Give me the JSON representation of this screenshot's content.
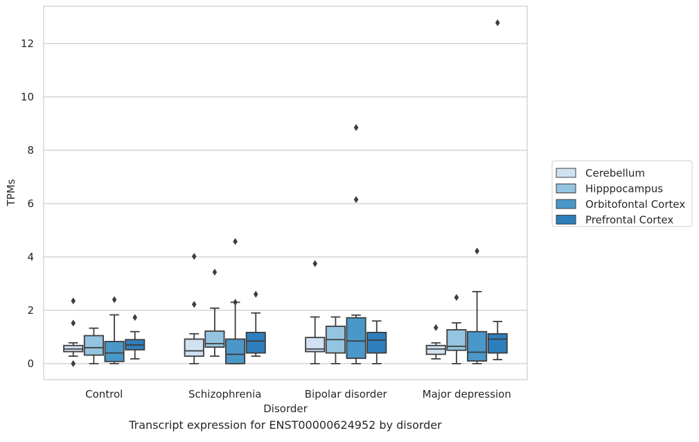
{
  "chart_data": {
    "type": "box",
    "xlabel": "Disorder",
    "ylabel": "TPMs",
    "caption": "Transcript expression for ENST00000624952 by disorder",
    "ylim": [
      -0.6,
      13.4
    ],
    "yticks": [
      0,
      2,
      4,
      6,
      8,
      10,
      12
    ],
    "grid": "horizontal",
    "legend_position": "right",
    "categories": [
      "Control",
      "Schizophrenia",
      "Bipolar disorder",
      "Major depression"
    ],
    "series": [
      {
        "name": "Cerebellum",
        "color": "#d0e1f2",
        "boxes": [
          {
            "whislo": 0.28,
            "q1": 0.45,
            "med": 0.55,
            "q3": 0.68,
            "whishi": 0.78,
            "fliers": [
              2.35,
              1.52,
              0.0
            ]
          },
          {
            "whislo": 0.0,
            "q1": 0.28,
            "med": 0.48,
            "q3": 0.92,
            "whishi": 1.12,
            "fliers": [
              4.02,
              2.22
            ]
          },
          {
            "whislo": 0.0,
            "q1": 0.45,
            "med": 0.55,
            "q3": 0.98,
            "whishi": 1.75,
            "fliers": [
              3.75
            ]
          },
          {
            "whislo": 0.18,
            "q1": 0.35,
            "med": 0.55,
            "q3": 0.68,
            "whishi": 0.78,
            "fliers": [
              1.35
            ]
          }
        ]
      },
      {
        "name": "Hipppocampus",
        "color": "#94c4df",
        "boxes": [
          {
            "whislo": 0.0,
            "q1": 0.32,
            "med": 0.6,
            "q3": 1.05,
            "whishi": 1.33,
            "fliers": []
          },
          {
            "whislo": 0.28,
            "q1": 0.62,
            "med": 0.75,
            "q3": 1.22,
            "whishi": 2.08,
            "fliers": [
              3.43
            ]
          },
          {
            "whislo": 0.0,
            "q1": 0.4,
            "med": 0.9,
            "q3": 1.4,
            "whishi": 1.75,
            "fliers": []
          },
          {
            "whislo": 0.0,
            "q1": 0.5,
            "med": 0.65,
            "q3": 1.27,
            "whishi": 1.53,
            "fliers": [
              2.48
            ]
          }
        ]
      },
      {
        "name": "Orbitofontal Cortex",
        "color": "#4a98c9",
        "boxes": [
          {
            "whislo": 0.0,
            "q1": 0.08,
            "med": 0.4,
            "q3": 0.83,
            "whishi": 1.83,
            "fliers": [
              2.4
            ]
          },
          {
            "whislo": 0.0,
            "q1": 0.0,
            "med": 0.35,
            "q3": 0.92,
            "whishi": 2.3,
            "fliers": [
              4.58,
              2.3
            ]
          },
          {
            "whislo": 0.0,
            "q1": 0.2,
            "med": 0.85,
            "q3": 1.72,
            "whishi": 1.82,
            "fliers": [
              8.85,
              6.15
            ]
          },
          {
            "whislo": 0.0,
            "q1": 0.1,
            "med": 0.43,
            "q3": 1.2,
            "whishi": 2.7,
            "fliers": [
              4.22
            ]
          }
        ]
      },
      {
        "name": "Prefrontal Cortex",
        "color": "#2e7ebc",
        "boxes": [
          {
            "whislo": 0.18,
            "q1": 0.52,
            "med": 0.7,
            "q3": 0.9,
            "whishi": 1.2,
            "fliers": [
              1.73
            ]
          },
          {
            "whislo": 0.28,
            "q1": 0.4,
            "med": 0.85,
            "q3": 1.17,
            "whishi": 1.9,
            "fliers": [
              2.6
            ]
          },
          {
            "whislo": 0.0,
            "q1": 0.4,
            "med": 0.88,
            "q3": 1.17,
            "whishi": 1.6,
            "fliers": []
          },
          {
            "whislo": 0.15,
            "q1": 0.4,
            "med": 0.92,
            "q3": 1.12,
            "whishi": 1.58,
            "fliers": [
              12.78
            ]
          }
        ]
      }
    ]
  }
}
